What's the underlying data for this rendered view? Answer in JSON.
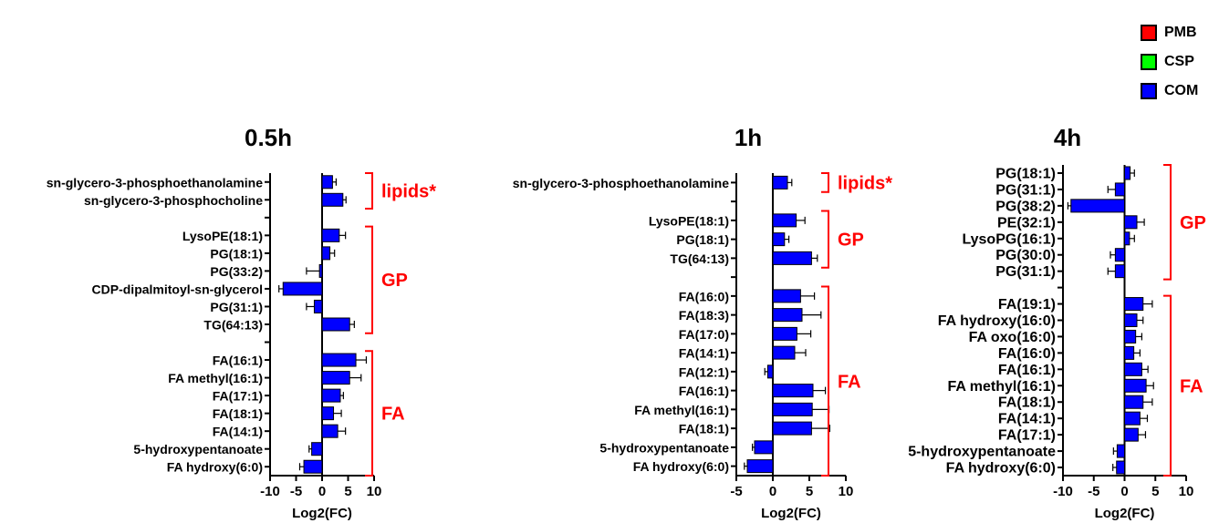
{
  "legend": [
    {
      "label": "PMB",
      "color": "#ff0000"
    },
    {
      "label": "CSP",
      "color": "#00ff00"
    },
    {
      "label": "COM",
      "color": "#0000ff"
    }
  ],
  "colors": {
    "bar": "#0000ff",
    "bracket": "#ff0000",
    "axis": "#000000"
  },
  "chart_data": [
    {
      "type": "bar",
      "orientation": "horizontal",
      "title": "0.5h",
      "xlabel": "Log2(FC)",
      "xlim": [
        -10,
        10
      ],
      "xticks": [
        "-10",
        "-5",
        "0",
        "5",
        "10"
      ],
      "rows": [
        {
          "label": "sn-glycero-3-phosphoethanolamine",
          "value": 2.0,
          "error": 0.7
        },
        {
          "label": "sn-glycero-3-phosphocholine",
          "value": 4.0,
          "error": 0.6
        },
        {
          "gap": true
        },
        {
          "label": "LysoPE(18:1)",
          "value": 3.3,
          "error": 1.2
        },
        {
          "label": "PG(18:1)",
          "value": 1.5,
          "error": 0.9
        },
        {
          "label": "PG(33:2)",
          "value": -0.5,
          "error": 2.5
        },
        {
          "label": "CDP-dipalmitoyl-sn-glycerol",
          "value": -7.5,
          "error": 0.8
        },
        {
          "label": "PG(31:1)",
          "value": -1.5,
          "error": 1.5
        },
        {
          "label": "TG(64:13)",
          "value": 5.3,
          "error": 0.9
        },
        {
          "gap": true
        },
        {
          "label": "FA(16:1)",
          "value": 6.5,
          "error": 2.0
        },
        {
          "label": "FA methyl(16:1)",
          "value": 5.3,
          "error": 2.2
        },
        {
          "label": "FA(17:1)",
          "value": 3.5,
          "error": 0.6
        },
        {
          "label": "FA(18:1)",
          "value": 2.2,
          "error": 1.5
        },
        {
          "label": "FA(14:1)",
          "value": 3.0,
          "error": 1.5
        },
        {
          "label": "5-hydroxypentanoate",
          "value": -2.0,
          "error": 0.5
        },
        {
          "label": "FA hydroxy(6:0)",
          "value": -3.5,
          "error": 0.8
        }
      ],
      "groups": [
        {
          "label": "lipids*",
          "from": 0,
          "to": 1
        },
        {
          "label": "GP",
          "from": 3,
          "to": 8
        },
        {
          "label": "FA",
          "from": 10,
          "to": 16
        }
      ]
    },
    {
      "type": "bar",
      "orientation": "horizontal",
      "title": "1h",
      "xlabel": "Log2(FC)",
      "xlim": [
        -5,
        10
      ],
      "xticks": [
        "-5",
        "0",
        "5",
        "10"
      ],
      "rows": [
        {
          "label": "sn-glycero-3-phosphoethanolamine",
          "value": 2.0,
          "error": 0.6
        },
        {
          "gap": true
        },
        {
          "label": "LysoPE(18:1)",
          "value": 3.2,
          "error": 1.2
        },
        {
          "label": "PG(18:1)",
          "value": 1.6,
          "error": 0.6
        },
        {
          "label": "TG(64:13)",
          "value": 5.3,
          "error": 0.8
        },
        {
          "gap": true
        },
        {
          "label": "FA(16:0)",
          "value": 3.8,
          "error": 1.9
        },
        {
          "label": "FA(18:3)",
          "value": 4.0,
          "error": 2.6
        },
        {
          "label": "FA(17:0)",
          "value": 3.3,
          "error": 1.9
        },
        {
          "label": "FA(14:1)",
          "value": 3.0,
          "error": 1.5
        },
        {
          "label": "FA(12:1)",
          "value": -0.7,
          "error": 0.4
        },
        {
          "label": "FA(16:1)",
          "value": 5.5,
          "error": 1.7
        },
        {
          "label": "FA methyl(16:1)",
          "value": 5.4,
          "error": 2.3
        },
        {
          "label": "FA(18:1)",
          "value": 5.3,
          "error": 2.5
        },
        {
          "label": "5-hydroxypentanoate",
          "value": -2.5,
          "error": 0.3
        },
        {
          "label": "FA hydroxy(6:0)",
          "value": -3.5,
          "error": 0.4
        }
      ],
      "groups": [
        {
          "label": "lipids*",
          "from": 0,
          "to": 0
        },
        {
          "label": "GP",
          "from": 2,
          "to": 4
        },
        {
          "label": "FA",
          "from": 6,
          "to": 15
        }
      ]
    },
    {
      "type": "bar",
      "orientation": "horizontal",
      "title": "4h",
      "xlabel": "Log2(FC)",
      "xlim": [
        -10,
        10
      ],
      "xticks": [
        "-10",
        "-5",
        "0",
        "5",
        "10"
      ],
      "rows": [
        {
          "label": "PG(18:1)",
          "value": 0.9,
          "error": 0.7
        },
        {
          "label": "PG(31:1)",
          "value": -1.5,
          "error": 1.2
        },
        {
          "label": "PG(38:2)",
          "value": -8.7,
          "error": 0.5
        },
        {
          "label": "PE(32:1)",
          "value": 2.0,
          "error": 1.2
        },
        {
          "label": "LysoPG(16:1)",
          "value": 0.8,
          "error": 0.8
        },
        {
          "label": "PG(30:0)",
          "value": -1.5,
          "error": 0.8
        },
        {
          "label": "PG(31:1)",
          "value": -1.5,
          "error": 1.2
        },
        {
          "gap": true
        },
        {
          "label": "FA(19:1)",
          "value": 3.0,
          "error": 1.5
        },
        {
          "label": "FA hydroxy(16:0)",
          "value": 2.0,
          "error": 1.0
        },
        {
          "label": "FA oxo(16:0)",
          "value": 1.8,
          "error": 1.0
        },
        {
          "label": "FA(16:0)",
          "value": 1.5,
          "error": 1.0
        },
        {
          "label": "FA(16:1)",
          "value": 2.8,
          "error": 1.0
        },
        {
          "label": "FA methyl(16:1)",
          "value": 3.5,
          "error": 1.2
        },
        {
          "label": "FA(18:1)",
          "value": 3.0,
          "error": 1.5
        },
        {
          "label": "FA(14:1)",
          "value": 2.5,
          "error": 1.2
        },
        {
          "label": "FA(17:1)",
          "value": 2.2,
          "error": 1.2
        },
        {
          "label": "5-hydroxypentanoate",
          "value": -1.2,
          "error": 0.6
        },
        {
          "label": "FA hydroxy(6:0)",
          "value": -1.3,
          "error": 0.6
        }
      ],
      "groups": [
        {
          "label": "GP",
          "from": 0,
          "to": 6
        },
        {
          "label": "FA",
          "from": 8,
          "to": 18
        }
      ]
    }
  ]
}
